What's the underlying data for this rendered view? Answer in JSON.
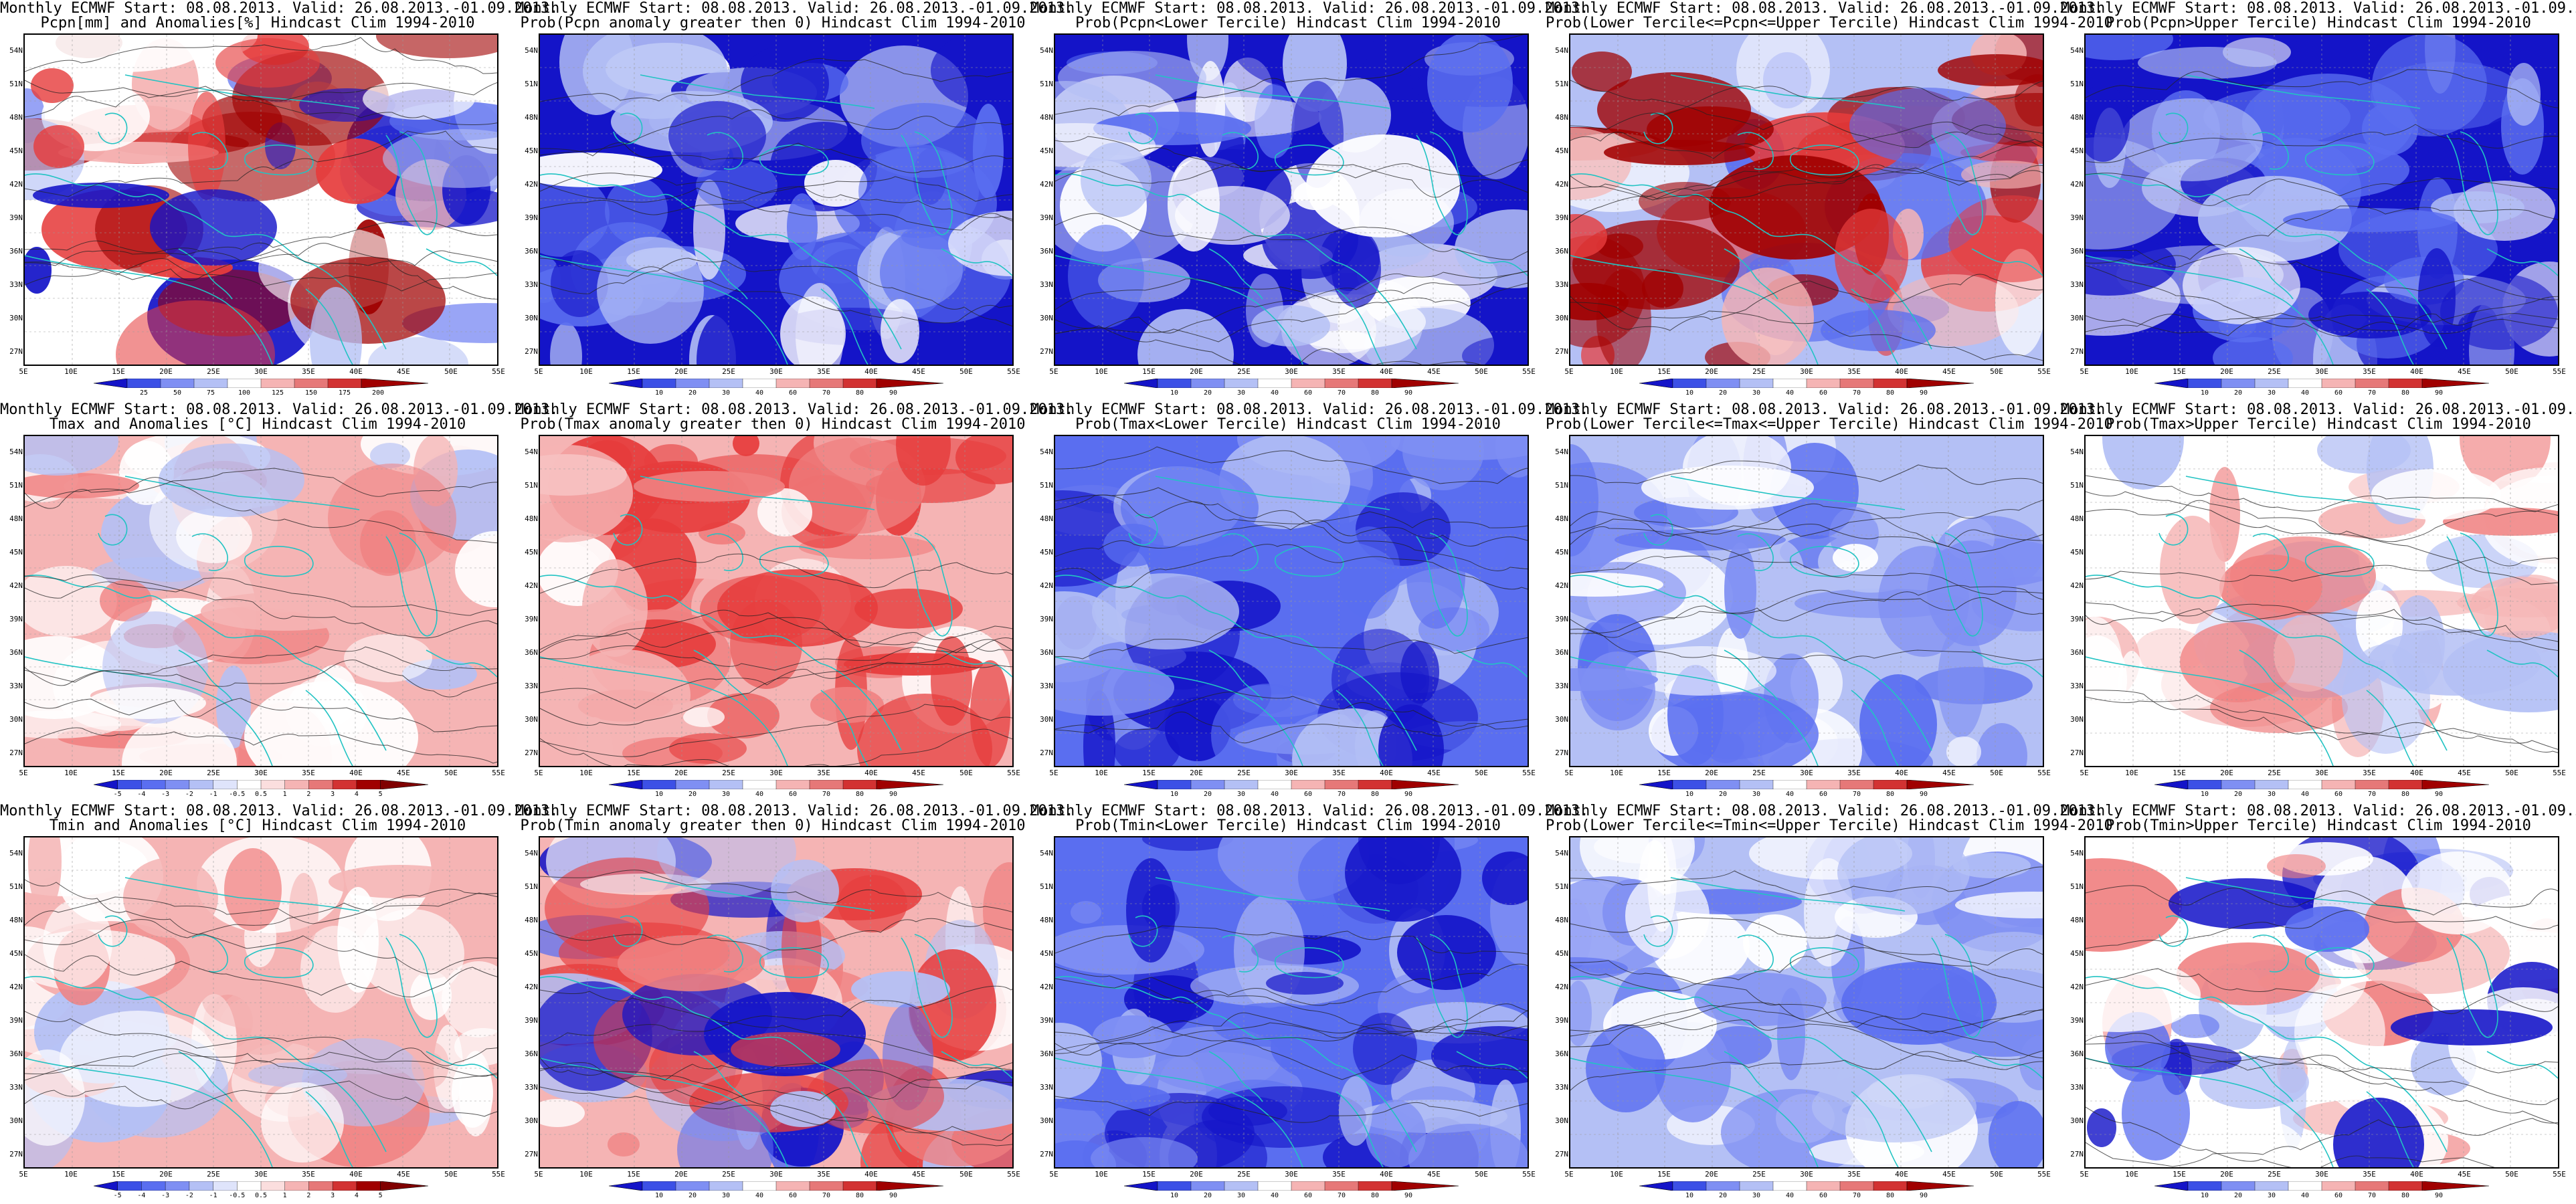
{
  "title_line1": "Monthly ECMWF Start: 08.08.2013. Valid: 26.08.2013.-01.09.2013.",
  "lat_labels": [
    "54N",
    "51N",
    "48N",
    "45N",
    "42N",
    "39N",
    "36N",
    "33N",
    "30N",
    "27N"
  ],
  "lon_labels": [
    "5E",
    "10E",
    "15E",
    "20E",
    "25E",
    "30E",
    "35E",
    "40E",
    "45E",
    "50E",
    "55E"
  ],
  "colors": {
    "coast": "#22c3c3",
    "contour": "#222222",
    "deep_blue": "#1414c8",
    "mid_blue": "#5a6ef0",
    "light_blue": "#b4c0f5",
    "light_red": "#f5b4b4",
    "mid_red": "#e63c3c",
    "deep_red": "#a00000"
  },
  "panels": [
    {
      "title": "Pcpn[mm] and Anomalies[%] Hindcast Clim 1994-2010",
      "scheme": "pcpn_anom",
      "cbar": [
        "25",
        "50",
        "75",
        "100",
        "125",
        "150",
        "175",
        "200"
      ]
    },
    {
      "title": "Prob(Pcpn anomaly greater then 0) Hindcast Clim 1994-2010",
      "scheme": "prob_low",
      "cbar": [
        "10",
        "20",
        "30",
        "40",
        "60",
        "70",
        "80",
        "90"
      ]
    },
    {
      "title": "Prob(Pcpn<Lower Tercile) Hindcast Clim 1994-2010",
      "scheme": "tercile_low",
      "cbar": [
        "10",
        "20",
        "30",
        "40",
        "60",
        "70",
        "80",
        "90"
      ]
    },
    {
      "title": "Prob(Lower Tercile<=Pcpn<=Upper Tercile) Hindcast Clim 1994-2010",
      "scheme": "tercile_mid_pcpn",
      "cbar": [
        "10",
        "20",
        "30",
        "40",
        "60",
        "70",
        "80",
        "90"
      ]
    },
    {
      "title": "Prob(Pcpn>Upper Tercile) Hindcast Clim 1994-2010",
      "scheme": "prob_low",
      "cbar": [
        "10",
        "20",
        "30",
        "40",
        "60",
        "70",
        "80",
        "90"
      ]
    },
    {
      "title": "Tmax and Anomalies [°C] Hindcast Clim 1994-2010",
      "scheme": "temp_anom",
      "cbar": [
        "-5",
        "-4",
        "-3",
        "-2",
        "-1",
        "-0.5",
        "0.5",
        "1",
        "2",
        "3",
        "4",
        "5"
      ]
    },
    {
      "title": "Prob(Tmax anomaly greater then 0) Hindcast Clim 1994-2010",
      "scheme": "prob_high",
      "cbar": [
        "10",
        "20",
        "30",
        "40",
        "60",
        "70",
        "80",
        "90"
      ]
    },
    {
      "title": "Prob(Tmax<Lower Tercile) Hindcast Clim 1994-2010",
      "scheme": "prob_blue",
      "cbar": [
        "10",
        "20",
        "30",
        "40",
        "60",
        "70",
        "80",
        "90"
      ]
    },
    {
      "title": "Prob(Lower Tercile<=Tmax<=Upper Tercile) Hindcast Clim 1994-2010",
      "scheme": "prob_blue_light",
      "cbar": [
        "10",
        "20",
        "30",
        "40",
        "60",
        "70",
        "80",
        "90"
      ]
    },
    {
      "title": "Prob(Tmax>Upper Tercile) Hindcast Clim 1994-2010",
      "scheme": "prob_pink",
      "cbar": [
        "10",
        "20",
        "30",
        "40",
        "60",
        "70",
        "80",
        "90"
      ]
    },
    {
      "title": "Tmin and Anomalies [°C] Hindcast Clim 1994-2010",
      "scheme": "temp_anom",
      "cbar": [
        "-5",
        "-4",
        "-3",
        "-2",
        "-1",
        "-0.5",
        "0.5",
        "1",
        "2",
        "3",
        "4",
        "5"
      ]
    },
    {
      "title": "Prob(Tmin anomaly greater then 0) Hindcast Clim 1994-2010",
      "scheme": "prob_high_mixed",
      "cbar": [
        "10",
        "20",
        "30",
        "40",
        "60",
        "70",
        "80",
        "90"
      ]
    },
    {
      "title": "Prob(Tmin<Lower Tercile) Hindcast Clim 1994-2010",
      "scheme": "prob_blue",
      "cbar": [
        "10",
        "20",
        "30",
        "40",
        "60",
        "70",
        "80",
        "90"
      ]
    },
    {
      "title": "Prob(Lower Tercile<=Tmin<=Upper Tercile) Hindcast Clim 1994-2010",
      "scheme": "prob_blue_light",
      "cbar": [
        "10",
        "20",
        "30",
        "40",
        "60",
        "70",
        "80",
        "90"
      ]
    },
    {
      "title": "Prob(Tmin>Upper Tercile) Hindcast Clim 1994-2010",
      "scheme": "prob_pink_blue",
      "cbar": [
        "10",
        "20",
        "30",
        "40",
        "60",
        "70",
        "80",
        "90"
      ]
    }
  ]
}
